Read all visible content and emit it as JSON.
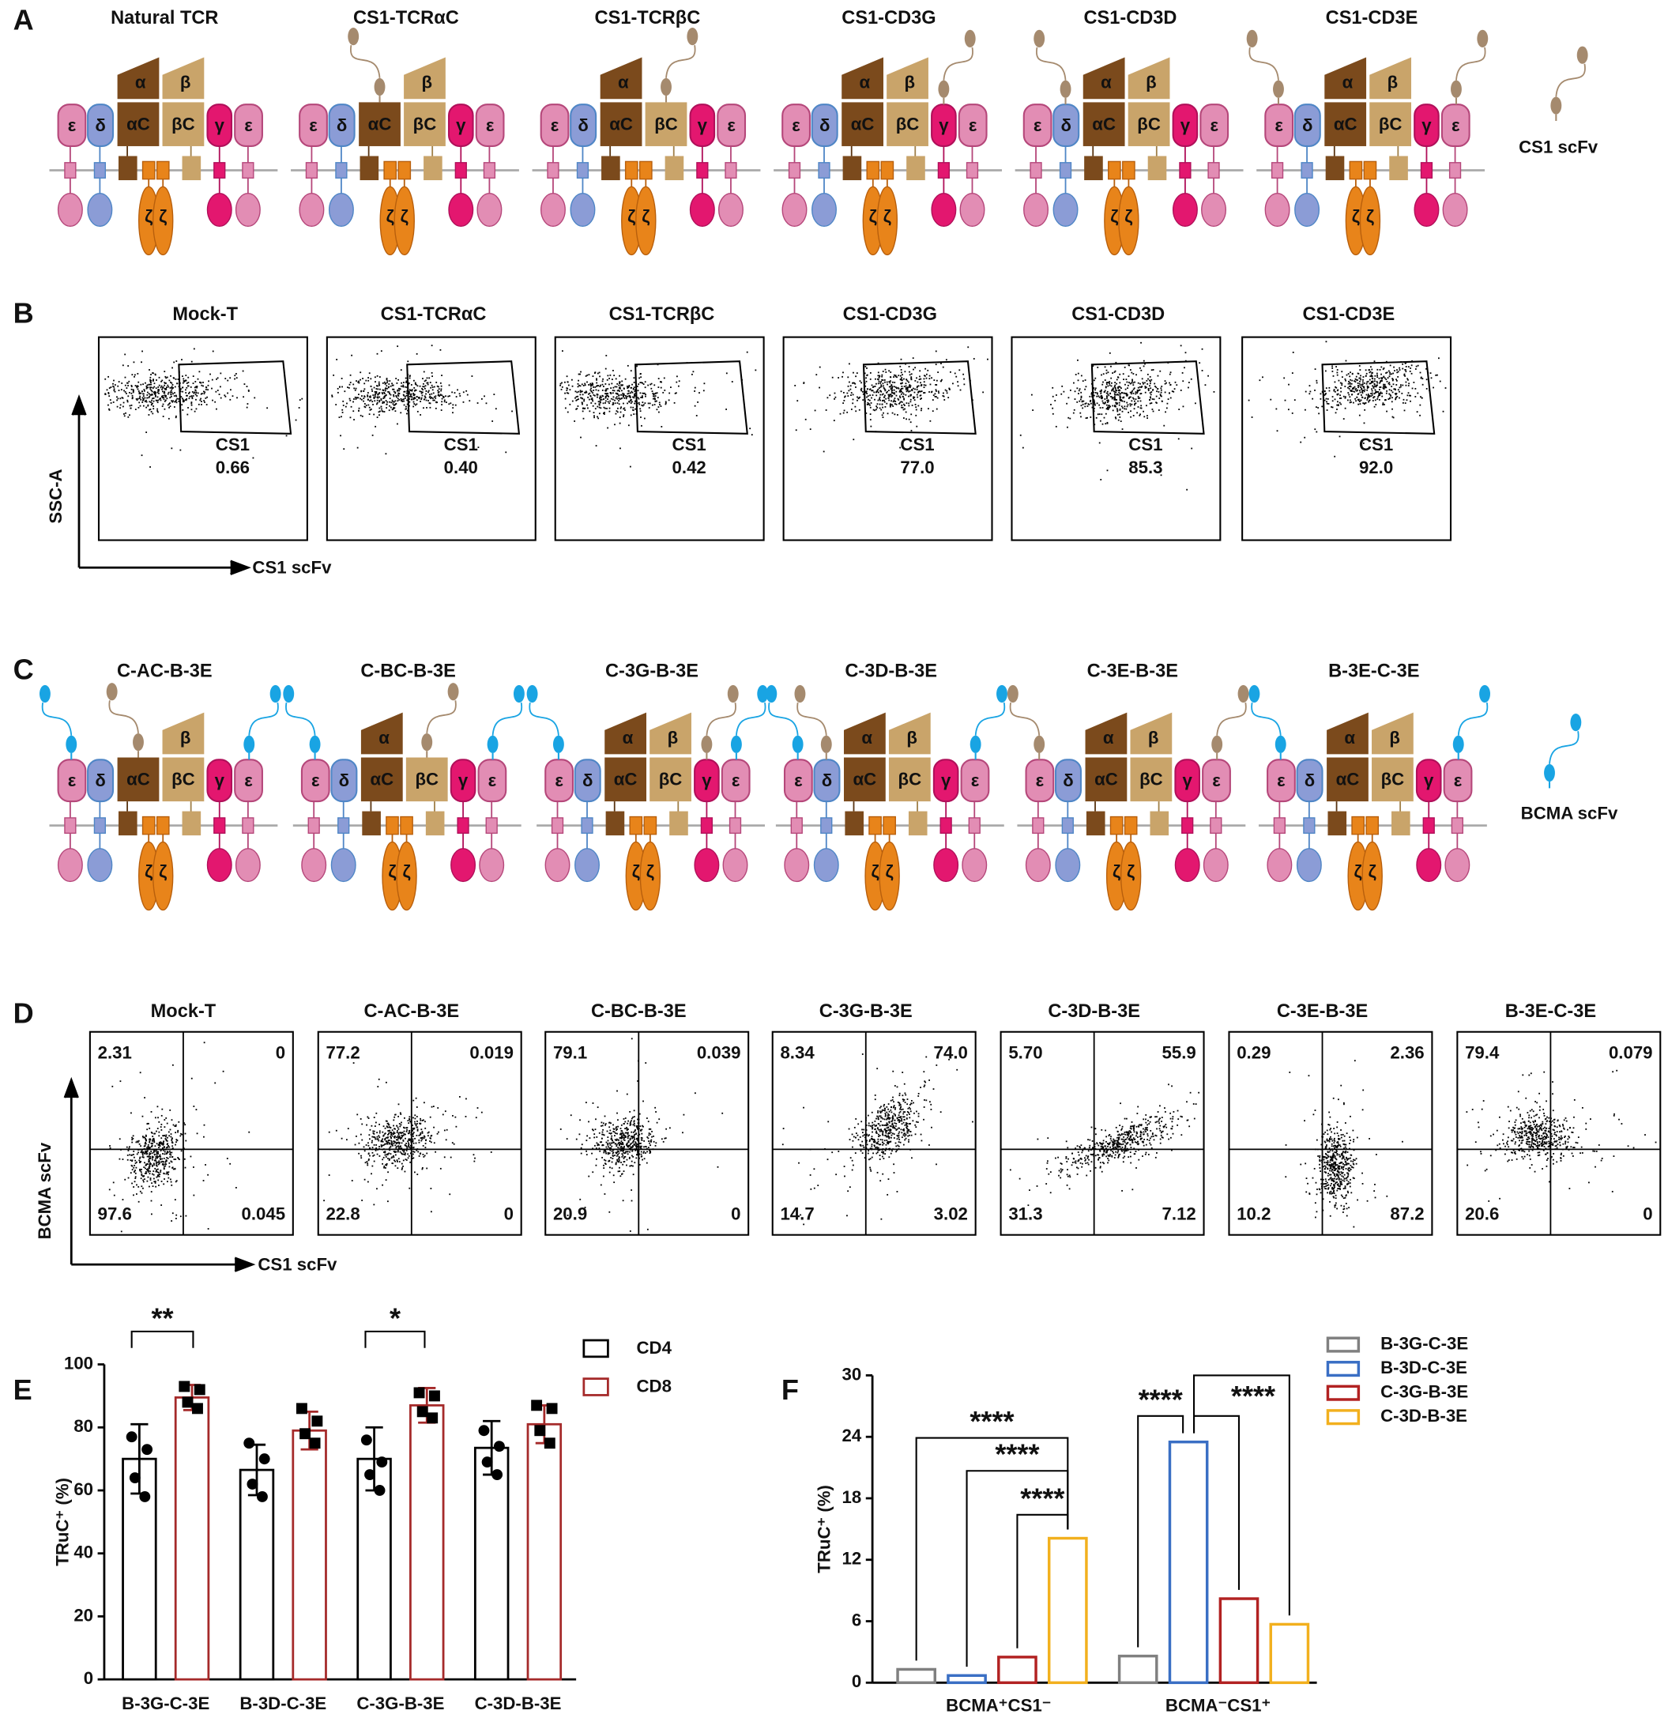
{
  "panel_letters": [
    "A",
    "B",
    "C",
    "D",
    "E",
    "F"
  ],
  "subunits": {
    "epsilon": "ε",
    "delta": "δ",
    "alpha": "α",
    "alpha_c": "αC",
    "beta": "β",
    "beta_c": "βC",
    "gamma": "γ",
    "zeta": "ζ"
  },
  "panel_a": {
    "titles": [
      "Natural TCR",
      "CS1-TCRαC",
      "CS1-TCRβC",
      "CS1-CD3G",
      "CS1-CD3D",
      "CS1-CD3E"
    ],
    "legend": "CS1 scFv"
  },
  "panel_b": {
    "titles": [
      "Mock-T",
      "CS1-TCRαC",
      "CS1-TCRβC",
      "CS1-CD3G",
      "CS1-CD3D",
      "CS1-CD3E"
    ],
    "gate_label": "CS1",
    "values": [
      "0.66",
      "0.40",
      "0.42",
      "77.0",
      "85.3",
      "92.0"
    ],
    "y_axis": "SSC-A",
    "x_axis": "CS1 scFv"
  },
  "panel_c": {
    "titles": [
      "C-AC-B-3E",
      "C-BC-B-3E",
      "C-3G-B-3E",
      "C-3D-B-3E",
      "C-3E-B-3E",
      "B-3E-C-3E"
    ],
    "legend": "BCMA scFv"
  },
  "panel_d": {
    "titles": [
      "Mock-T",
      "C-AC-B-3E",
      "C-BC-B-3E",
      "C-3G-B-3E",
      "C-3D-B-3E",
      "C-3E-B-3E",
      "B-3E-C-3E"
    ],
    "quadrants": [
      [
        "2.31",
        "0",
        "97.6",
        "0.045"
      ],
      [
        "77.2",
        "0.019",
        "22.8",
        "0"
      ],
      [
        "79.1",
        "0.039",
        "20.9",
        "0"
      ],
      [
        "8.34",
        "74.0",
        "14.7",
        "3.02"
      ],
      [
        "5.70",
        "55.9",
        "31.3",
        "7.12"
      ],
      [
        "0.29",
        "2.36",
        "10.2",
        "87.2"
      ],
      [
        "79.4",
        "0.079",
        "20.6",
        "0"
      ]
    ],
    "y_axis": "BCMA scFv",
    "x_axis": "CS1 scFv"
  },
  "chart_data": [
    {
      "type": "bar",
      "y_label": "TRuC⁺ (%)",
      "categories": [
        "B-3G-C-3E",
        "B-3D-C-3E",
        "C-3G-B-3E",
        "C-3D-B-3E"
      ],
      "series": [
        {
          "name": "CD4",
          "color": "#000000",
          "values": [
            70,
            66.5,
            70,
            73.5
          ],
          "errors": [
            11,
            8,
            10,
            8.5
          ],
          "points": [
            [
              77,
              73,
              64,
              58
            ],
            [
              75,
              70,
              62,
              58
            ],
            [
              76,
              69,
              65,
              60
            ],
            [
              79,
              74,
              69,
              65
            ]
          ]
        },
        {
          "name": "CD8",
          "color": "#a52a2a",
          "values": [
            89.5,
            79,
            87,
            81
          ],
          "errors": [
            4,
            6,
            5.5,
            6
          ],
          "points": [
            [
              93,
              92,
              88,
              86
            ],
            [
              86,
              82,
              78,
              75
            ],
            [
              91,
              90,
              85,
              83
            ],
            [
              87,
              86,
              79,
              75
            ]
          ]
        }
      ],
      "ylim": [
        0,
        100
      ],
      "yticks": [
        0,
        20,
        40,
        60,
        80,
        100
      ],
      "legend": "upper right",
      "annotations": [
        "**",
        "*"
      ]
    },
    {
      "type": "bar",
      "y_label": "TRuC⁺ (%)",
      "categories": [
        "BCMA⁺CS1⁻",
        "BCMA⁻CS1⁺"
      ],
      "series": [
        {
          "name": "B-3G-C-3E",
          "color": "#808080",
          "values": [
            1.3,
            2.6
          ]
        },
        {
          "name": "B-3D-C-3E",
          "color": "#3a6fc4",
          "values": [
            0.7,
            23.5
          ]
        },
        {
          "name": "C-3G-B-3E",
          "color": "#b22222",
          "values": [
            2.5,
            8.2
          ]
        },
        {
          "name": "C-3D-B-3E",
          "color": "#f2b01e",
          "values": [
            14.1,
            5.7
          ]
        }
      ],
      "ylim": [
        0,
        30
      ],
      "yticks": [
        0,
        6,
        12,
        18,
        24,
        30
      ],
      "legend": "upper right",
      "annotations": [
        "****",
        "****",
        "****",
        "****",
        "****"
      ]
    }
  ]
}
